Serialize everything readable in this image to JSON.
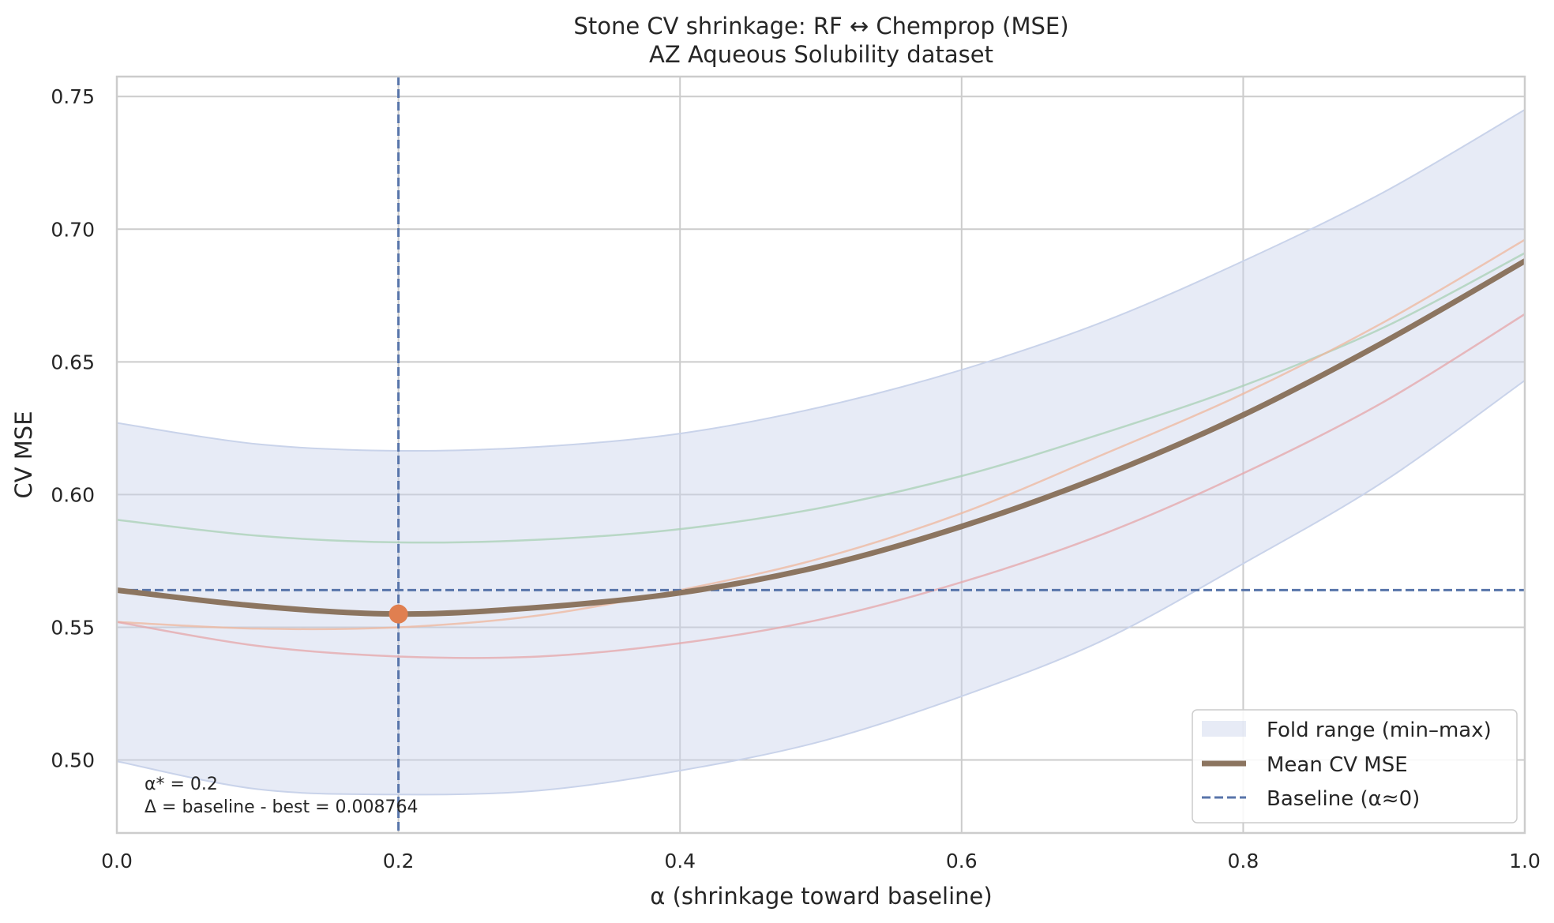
{
  "chart_data": {
    "type": "line",
    "title": "Stone CV shrinkage: RF ↔ Chemprop (MSE)",
    "subtitle": "AZ Aqueous Solubility dataset",
    "xlabel": "α (shrinkage toward baseline)",
    "ylabel": "CV MSE",
    "xlim": [
      0.0,
      1.0
    ],
    "ylim": [
      0.4725,
      0.7575
    ],
    "xticks": [
      0.0,
      0.2,
      0.4,
      0.6,
      0.8,
      1.0
    ],
    "xtick_labels": [
      "0.0",
      "0.2",
      "0.4",
      "0.6",
      "0.8",
      "1.0"
    ],
    "yticks": [
      0.5,
      0.55,
      0.6,
      0.65,
      0.7,
      0.75
    ],
    "ytick_labels": [
      "0.50",
      "0.55",
      "0.60",
      "0.65",
      "0.70",
      "0.75"
    ],
    "grid": true,
    "legend_position": "lower-right",
    "x": [
      0.0,
      0.1,
      0.2,
      0.3,
      0.4,
      0.5,
      0.6,
      0.7,
      0.8,
      0.9,
      1.0
    ],
    "band": {
      "name": "Fold range (min–max)",
      "color": "#c9d3ea",
      "lower": [
        0.4995,
        0.489,
        0.487,
        0.4885,
        0.496,
        0.507,
        0.524,
        0.545,
        0.574,
        0.605,
        0.643
      ],
      "upper": [
        0.627,
        0.619,
        0.6165,
        0.618,
        0.623,
        0.633,
        0.647,
        0.665,
        0.688,
        0.714,
        0.745
      ]
    },
    "series": [
      {
        "name": "Mean CV MSE",
        "color": "#8c7560",
        "values": [
          0.564,
          0.558,
          0.555,
          0.5575,
          0.563,
          0.573,
          0.588,
          0.607,
          0.63,
          0.6575,
          0.688
        ]
      },
      {
        "name": "",
        "color": "#a8d0b4",
        "values": [
          0.5905,
          0.5845,
          0.582,
          0.583,
          0.587,
          0.595,
          0.607,
          0.623,
          0.641,
          0.663,
          0.691
        ]
      },
      {
        "name": "",
        "color": "#efb79c",
        "values": [
          0.552,
          0.5495,
          0.55,
          0.5545,
          0.564,
          0.576,
          0.593,
          0.615,
          0.638,
          0.665,
          0.696
        ]
      },
      {
        "name": "",
        "color": "#e5a5a8",
        "values": [
          0.552,
          0.543,
          0.539,
          0.539,
          0.544,
          0.553,
          0.567,
          0.585,
          0.608,
          0.635,
          0.668
        ]
      }
    ],
    "baseline": {
      "name": "Baseline (α≈0)",
      "value": 0.564,
      "color": "#5875aa"
    },
    "best": {
      "alpha": 0.2,
      "value": 0.555,
      "color": "#e07f50"
    },
    "annotations": [
      "α* = 0.2",
      "Δ = baseline - best = 0.008764"
    ]
  }
}
